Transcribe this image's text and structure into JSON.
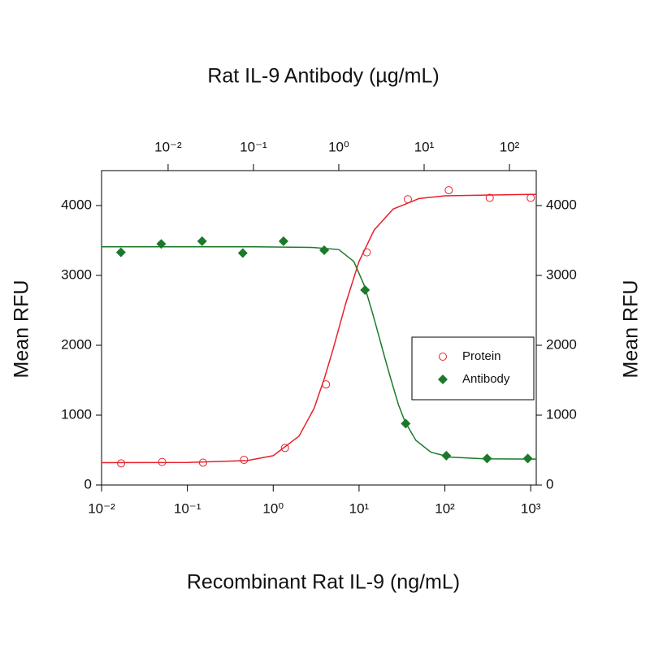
{
  "chart_data": {
    "type": "scatter",
    "x2label": "Rat IL-9 Antibody (µg/mL)",
    "xlabel": "Recombinant Rat IL-9 (ng/mL)",
    "ylabel": "Mean RFU",
    "y2label": "Mean RFU",
    "xscale": "log",
    "xlim": [
      0.01,
      1160
    ],
    "xticks": [
      {
        "value": 0.01,
        "label": "10⁻²"
      },
      {
        "value": 0.1,
        "label": "10⁻¹"
      },
      {
        "value": 1,
        "label": "10⁰"
      },
      {
        "value": 10,
        "label": "10¹"
      },
      {
        "value": 100,
        "label": "10²"
      },
      {
        "value": 1000,
        "label": "10³"
      }
    ],
    "x2lim": [
      0.00166,
      206
    ],
    "x2ticks": [
      {
        "value": 0.01,
        "label": "10⁻²"
      },
      {
        "value": 0.1,
        "label": "10⁻¹"
      },
      {
        "value": 1,
        "label": "10⁰"
      },
      {
        "value": 10,
        "label": "10¹"
      },
      {
        "value": 100,
        "label": "10²"
      }
    ],
    "ylim": [
      0,
      4500
    ],
    "yticks": [
      0,
      1000,
      2000,
      3000,
      4000
    ],
    "y2lim": [
      0,
      4500
    ],
    "y2ticks": [
      0,
      1000,
      2000,
      3000,
      4000
    ],
    "legend": "right",
    "series": [
      {
        "name": "Protein",
        "color": "#e8202a",
        "marker": "open-circle",
        "axis": "x",
        "x": [
          0.0169,
          0.0508,
          0.152,
          0.457,
          1.37,
          4.12,
          12.3,
          37,
          111,
          333,
          1000
        ],
        "values": [
          310,
          330,
          320,
          360,
          530,
          1440,
          3330,
          4090,
          4220,
          4110,
          4110
        ],
        "curve": {
          "x": [
            0.01,
            0.1,
            0.5,
            1,
            2,
            3,
            4,
            5,
            7,
            10,
            15,
            25,
            50,
            100,
            1000,
            1160
          ],
          "values": [
            320,
            322,
            350,
            420,
            700,
            1100,
            1550,
            1950,
            2600,
            3200,
            3650,
            3950,
            4100,
            4140,
            4160,
            4160
          ]
        }
      },
      {
        "name": "Antibody",
        "color": "#1a7a2a",
        "marker": "diamond",
        "axis": "x2",
        "x": [
          0.0028,
          0.0083,
          0.025,
          0.075,
          0.225,
          0.675,
          2.03,
          6.08,
          18.2,
          54.7,
          164
        ],
        "values": [
          3330,
          3450,
          3490,
          3320,
          3490,
          3360,
          2790,
          880,
          420,
          380,
          380
        ],
        "curve": {
          "x": [
            0.00166,
            0.1,
            0.5,
            1,
            1.5,
            2,
            2.5,
            3,
            3.5,
            4,
            5,
            6,
            8,
            12,
            20,
            50,
            206
          ],
          "values": [
            3410,
            3410,
            3400,
            3370,
            3200,
            2850,
            2450,
            2100,
            1800,
            1550,
            1150,
            900,
            640,
            470,
            400,
            375,
            370
          ]
        }
      }
    ]
  }
}
